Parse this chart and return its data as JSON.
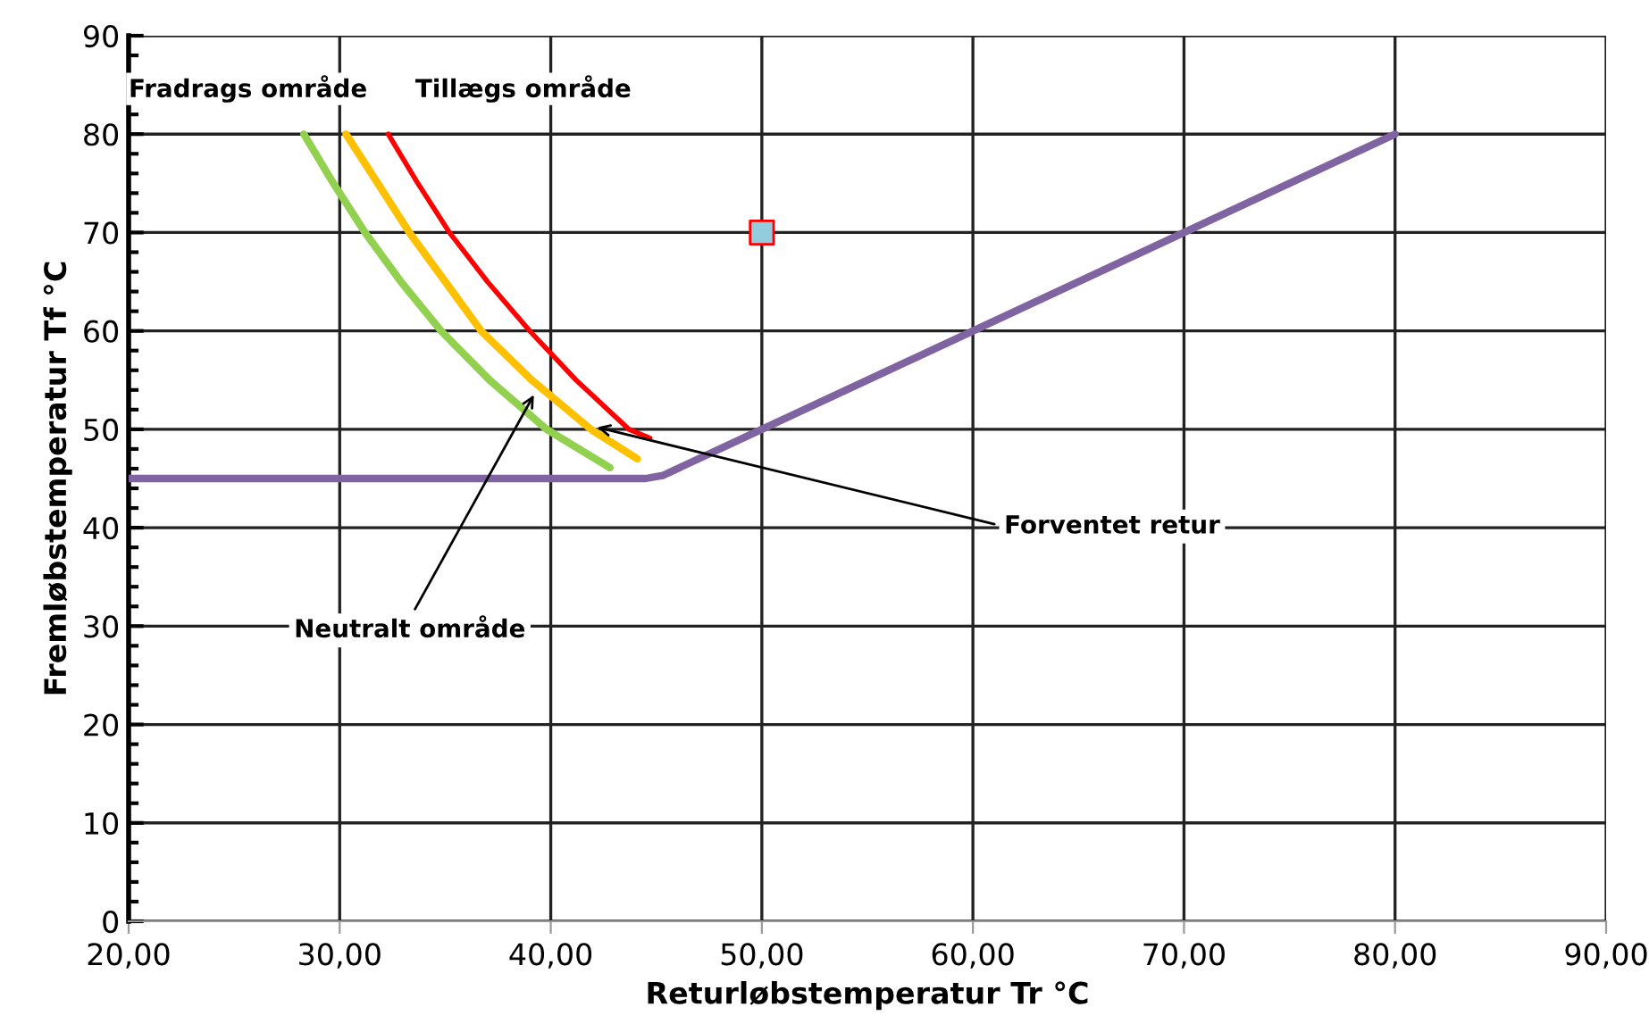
{
  "chart_data": {
    "type": "line",
    "xlabel": "Returløbstemperatur Tr °C",
    "ylabel": "Fremløbstemperatur Tf °C",
    "xlim": [
      20,
      90
    ],
    "ylim": [
      0,
      90
    ],
    "xticks": [
      {
        "value": 20,
        "label": "20,00"
      },
      {
        "value": 30,
        "label": "30,00"
      },
      {
        "value": 40,
        "label": "40,00"
      },
      {
        "value": 50,
        "label": "50,00"
      },
      {
        "value": 60,
        "label": "60,00"
      },
      {
        "value": 70,
        "label": "70,00"
      },
      {
        "value": 80,
        "label": "80,00"
      },
      {
        "value": 90,
        "label": "90,00"
      }
    ],
    "yticks": [
      0,
      10,
      20,
      30,
      40,
      50,
      60,
      70,
      80,
      90
    ],
    "grid": true,
    "legend": false,
    "marker": "none",
    "line_style": "solid",
    "series": [
      {
        "color": "#92d050",
        "x": [
          28.3,
          29.7,
          31.2,
          32.9,
          34.8,
          37.1,
          39.8,
          42.8
        ],
        "values": [
          80,
          75,
          70,
          65,
          60,
          55,
          50,
          46.1
        ]
      },
      {
        "color": "#ffc000",
        "x": [
          30.3,
          31.8,
          33.3,
          35.0,
          36.7,
          39.1,
          41.9,
          44.1
        ],
        "values": [
          80,
          75,
          70,
          65,
          60,
          55,
          50,
          47
        ]
      },
      {
        "color": "#ff0000",
        "x": [
          32.3,
          33.7,
          35.2,
          37.0,
          39.0,
          41.2,
          43.7,
          44.7
        ],
        "values": [
          80,
          75,
          70,
          65,
          60,
          55,
          50,
          49.1
        ]
      },
      {
        "color": "#8064a2",
        "x": [
          20,
          44.5,
          45.3,
          80
        ],
        "values": [
          45,
          45,
          45.3,
          80
        ]
      },
      {
        "type": "scatter",
        "marker": "square",
        "color": "#93cddd",
        "x": [
          50
        ],
        "values": [
          70
        ]
      }
    ],
    "annotations": [
      "Fradrags område",
      "Tillægs område",
      {
        "text": "Neutralt område",
        "x": 39.2,
        "y": 53.5
      },
      {
        "text": "Forventet retur",
        "x": 42.2,
        "y": 50.2
      }
    ]
  }
}
